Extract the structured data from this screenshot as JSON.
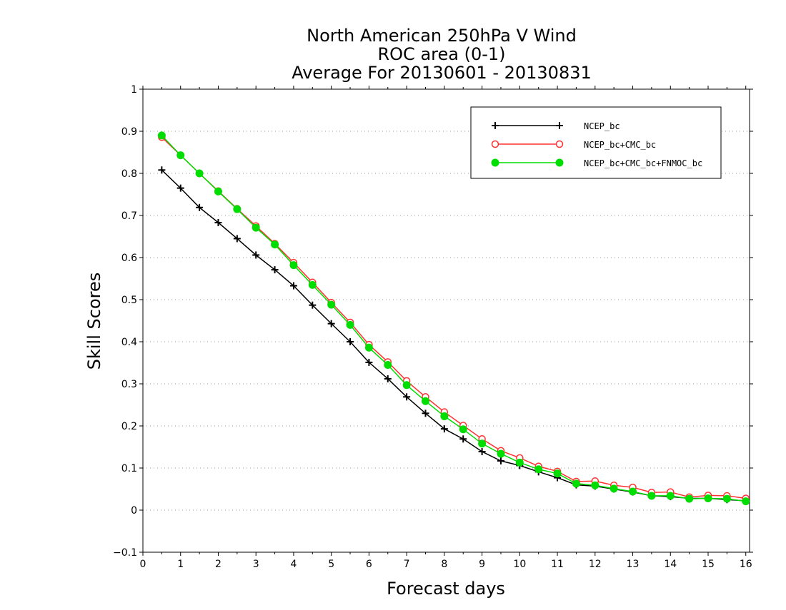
{
  "chart_data": {
    "type": "line",
    "title_lines": [
      "North American 250hPa V Wind",
      "ROC area (0-1)",
      "Average For 20130601 - 20130831"
    ],
    "xlabel": "Forecast days",
    "ylabel": "Skill Scores",
    "xlim": [
      0,
      16.1
    ],
    "ylim": [
      -0.1,
      1
    ],
    "x_ticks": [
      0,
      1,
      2,
      3,
      4,
      5,
      6,
      7,
      8,
      9,
      10,
      11,
      12,
      13,
      14,
      15,
      16
    ],
    "x_tick_labels": [
      "0",
      "1",
      "2",
      "3",
      "4",
      "5",
      "6",
      "7",
      "8",
      "9",
      "10",
      "11",
      "12",
      "13",
      "14",
      "15",
      "16"
    ],
    "y_ticks": [
      -0.1,
      0,
      0.1,
      0.2,
      0.3,
      0.4,
      0.5,
      0.6,
      0.7,
      0.8,
      0.9,
      1
    ],
    "y_tick_labels": [
      "−0.1",
      "0",
      "0.1",
      "0.2",
      "0.3",
      "0.4",
      "0.5",
      "0.6",
      "0.7",
      "0.8",
      "0.9",
      "1"
    ],
    "grid": true,
    "legend_position": "top-right",
    "x": [
      0.5,
      1,
      1.5,
      2,
      2.5,
      3,
      3.5,
      4,
      4.5,
      5,
      5.5,
      6,
      6.5,
      7,
      7.5,
      8,
      8.5,
      9,
      9.5,
      10,
      10.5,
      11,
      11.5,
      12,
      12.5,
      13,
      13.5,
      14,
      14.5,
      15,
      15.5,
      16
    ],
    "series": [
      {
        "name": "NCEP_bc",
        "color": "#000000",
        "marker": "plus",
        "values": [
          0.808,
          0.765,
          0.719,
          0.683,
          0.645,
          0.606,
          0.571,
          0.533,
          0.487,
          0.443,
          0.4,
          0.351,
          0.312,
          0.269,
          0.23,
          0.193,
          0.169,
          0.139,
          0.117,
          0.106,
          0.091,
          0.077,
          0.06,
          0.057,
          0.05,
          0.043,
          0.034,
          0.032,
          0.028,
          0.028,
          0.025,
          0.022
        ]
      },
      {
        "name": "NCEP_bc+CMC_bc",
        "color": "#ff3030",
        "marker": "open-circle",
        "values": [
          0.886,
          0.843,
          0.8,
          0.758,
          0.716,
          0.675,
          0.633,
          0.588,
          0.541,
          0.493,
          0.446,
          0.393,
          0.352,
          0.307,
          0.269,
          0.233,
          0.201,
          0.169,
          0.141,
          0.124,
          0.104,
          0.092,
          0.068,
          0.069,
          0.059,
          0.054,
          0.042,
          0.043,
          0.031,
          0.035,
          0.034,
          0.028
        ]
      },
      {
        "name": "NCEP_bc+CMC_bc+FNMOC_bc",
        "color": "#00dd00",
        "marker": "filled-circle",
        "values": [
          0.89,
          0.843,
          0.8,
          0.757,
          0.715,
          0.671,
          0.631,
          0.582,
          0.535,
          0.488,
          0.44,
          0.386,
          0.345,
          0.297,
          0.259,
          0.223,
          0.192,
          0.158,
          0.134,
          0.113,
          0.097,
          0.087,
          0.063,
          0.059,
          0.051,
          0.044,
          0.034,
          0.034,
          0.027,
          0.028,
          0.027,
          0.021
        ]
      }
    ]
  }
}
